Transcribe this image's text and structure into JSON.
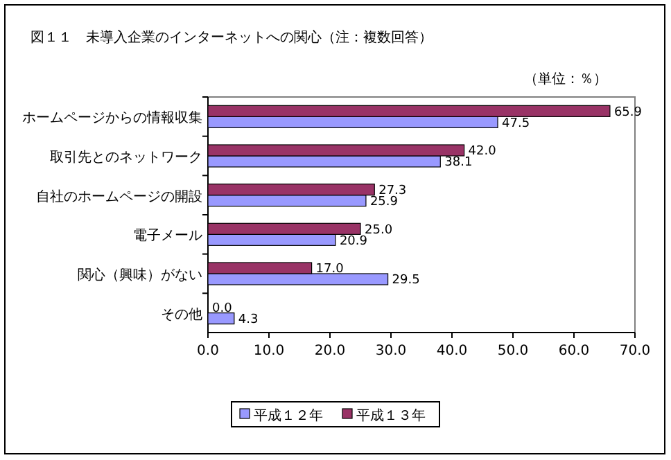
{
  "chart_data": {
    "type": "bar",
    "orientation": "horizontal",
    "title": "図１１　未導入企業のインターネットへの関心（注：複数回答）",
    "annotations": [
      "（単位：％）"
    ],
    "categories": [
      "ホームページからの情報収集",
      "取引先とのネットワーク",
      "自社のホームページの開設",
      "電子メール",
      "関心（興味）がない",
      "その他"
    ],
    "series": [
      {
        "name": "平成１２年",
        "color": "#9999ff",
        "values": [
          47.5,
          38.1,
          25.9,
          20.9,
          29.5,
          4.3
        ],
        "value_labels": [
          "47.5",
          "38.1",
          "25.9",
          "20.9",
          "29.5",
          "4.3"
        ]
      },
      {
        "name": "平成１３年",
        "color": "#993366",
        "values": [
          65.9,
          42.0,
          27.3,
          25.0,
          17.0,
          0.0
        ],
        "value_labels": [
          "65.9",
          "42.0",
          "27.3",
          "25.0",
          "17.0",
          "0.0"
        ]
      }
    ],
    "xlim": [
      0,
      70
    ],
    "xticks": [
      {
        "value": 0,
        "label": "0.0"
      },
      {
        "value": 10,
        "label": "10.0"
      },
      {
        "value": 20,
        "label": "20.0"
      },
      {
        "value": 30,
        "label": "30.0"
      },
      {
        "value": 40,
        "label": "40.0"
      },
      {
        "value": 50,
        "label": "50.0"
      },
      {
        "value": 60,
        "label": "60.0"
      },
      {
        "value": 70,
        "label": "70.0"
      }
    ],
    "legend": "bottom"
  }
}
